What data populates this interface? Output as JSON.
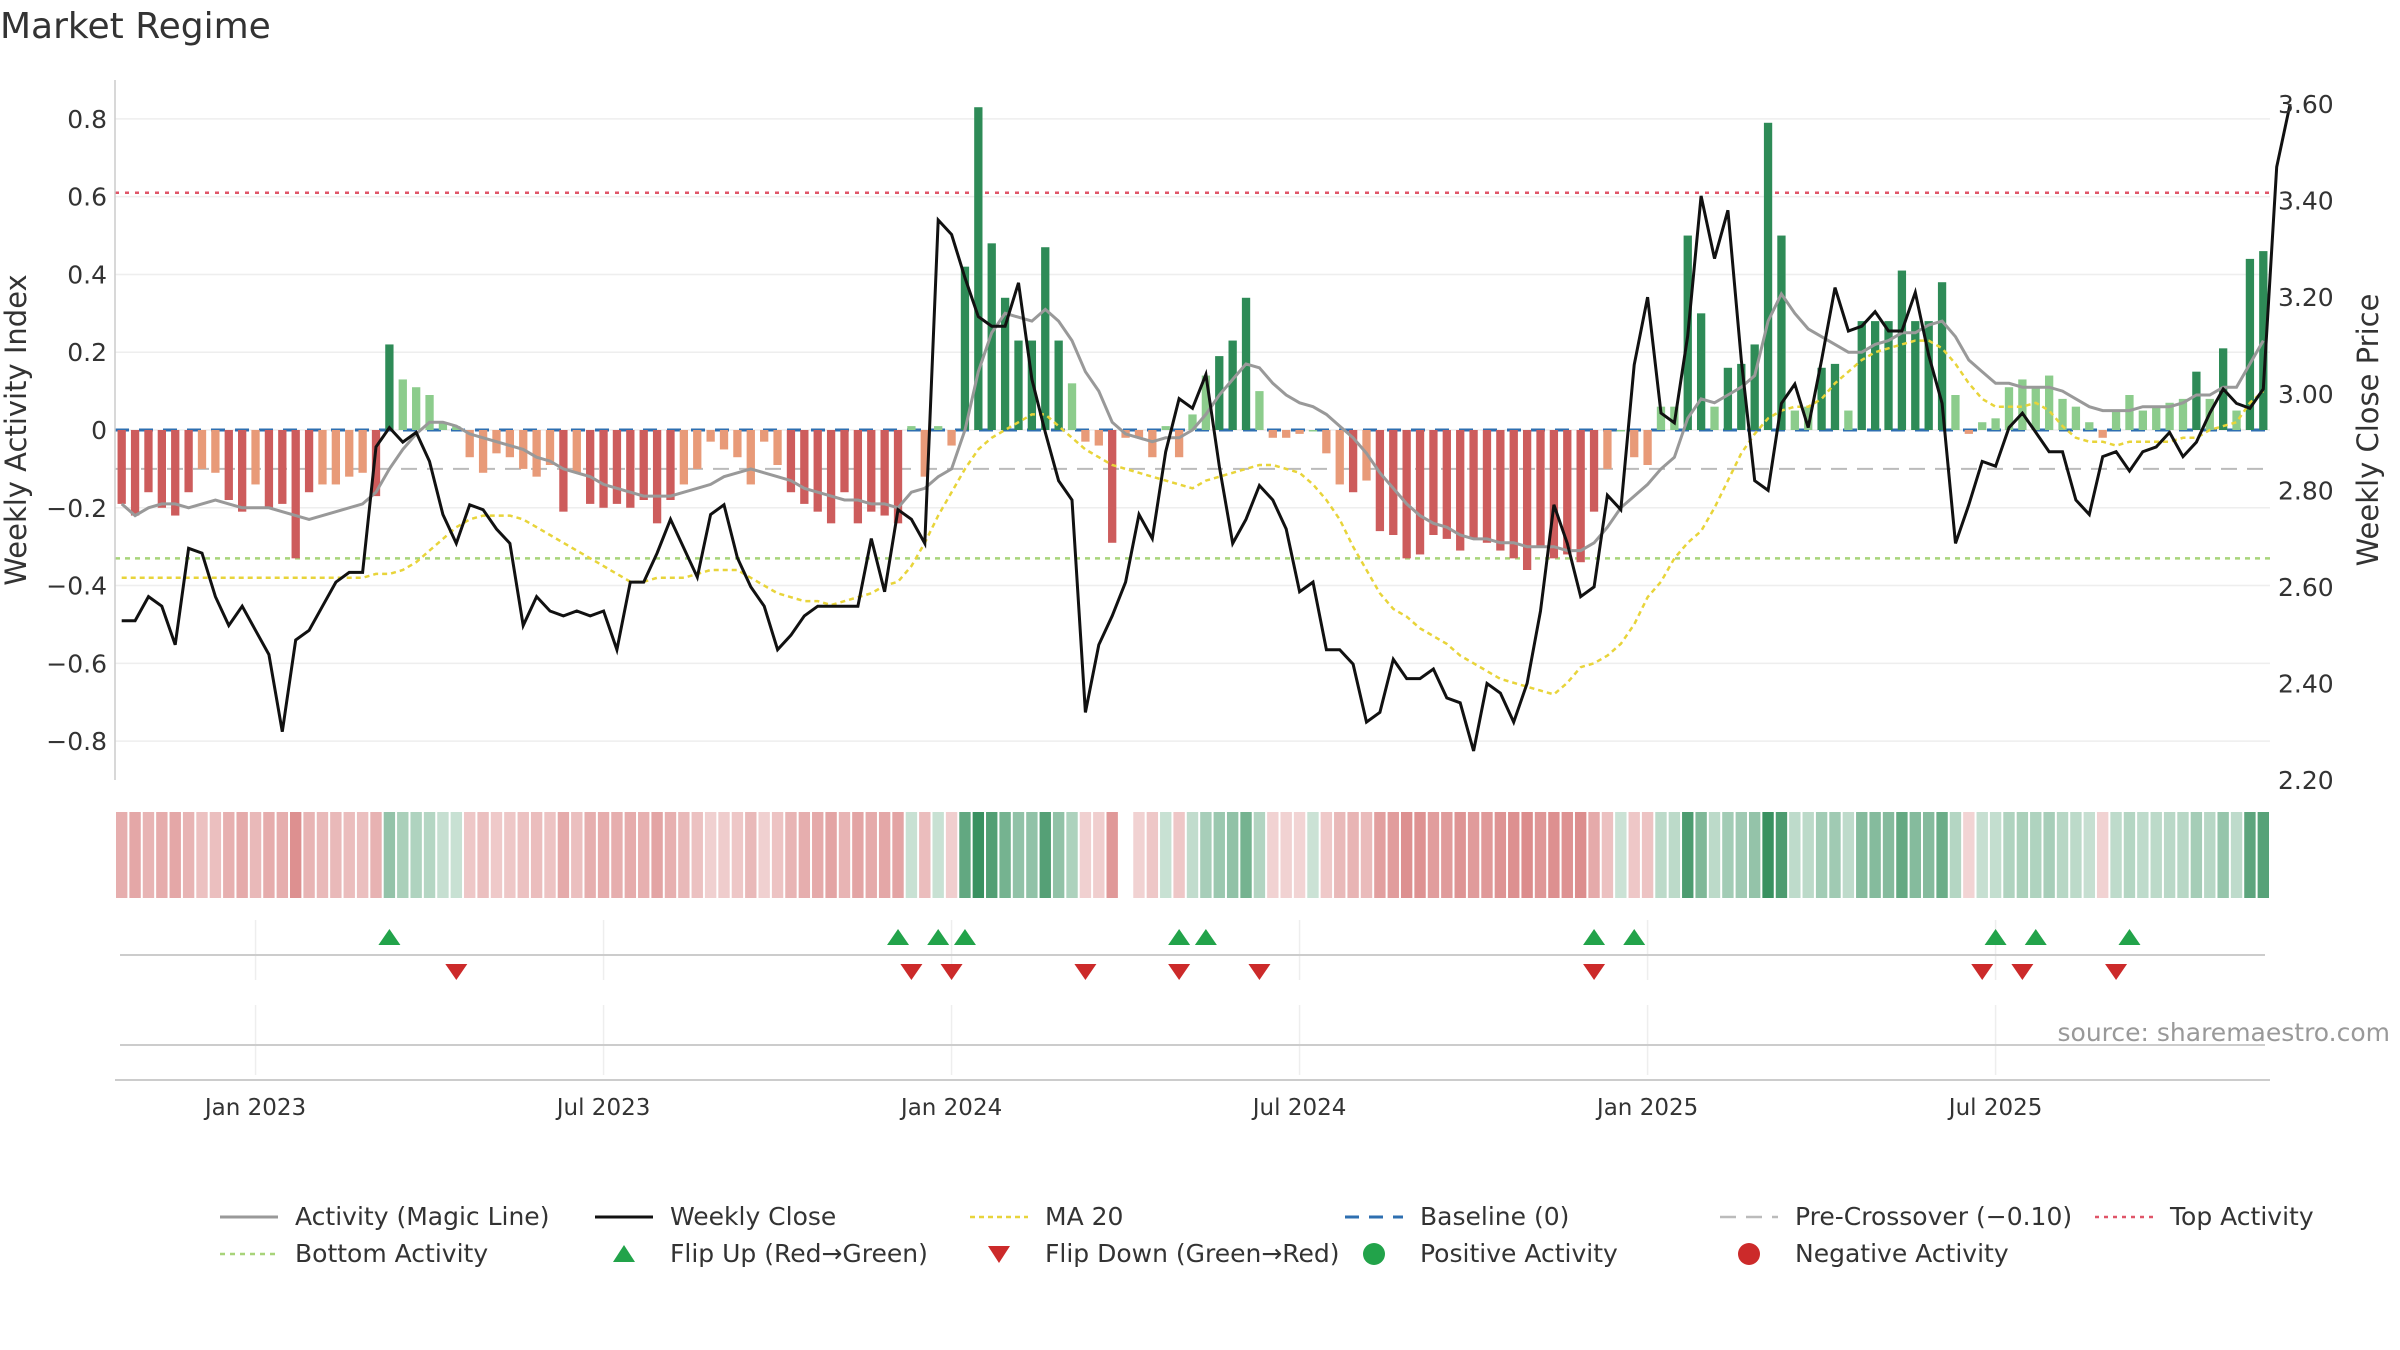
{
  "title": "Market Regime",
  "source_label": "source: sharemaestro.com",
  "colors": {
    "activity_line": "#999999",
    "close_line": "#111111",
    "ma20": "#e8d43a",
    "baseline": "#2e6fb0",
    "pre_crossover": "#bbbbbb",
    "top_activity": "#e05568",
    "bottom_activity": "#a8d47a",
    "flip_up": "#22a34a",
    "flip_down": "#cc2a2a",
    "bar_green_strong": "#2e8b57",
    "bar_green_light": "#8ccc8c",
    "bar_red_strong": "#cd5c5c",
    "bar_red_light": "#e89a78",
    "grid": "#eeeeee",
    "axis": "#cccccc"
  },
  "chart_data": {
    "type": "bar",
    "title": "Market Regime",
    "xlabel": "",
    "ylabel": "Weekly Activity Index",
    "y2label": "Weekly Close Price",
    "x_tick_labels": [
      "Jan 2023",
      "Jul 2023",
      "Jan 2024",
      "Jul 2024",
      "Jan 2025",
      "Jul 2025"
    ],
    "x_tick_weeks": [
      10,
      36,
      62,
      88,
      114,
      140
    ],
    "ylim": [
      -0.9,
      0.9
    ],
    "yticks": [
      -0.8,
      -0.6,
      -0.4,
      -0.2,
      0,
      0.2,
      0.4,
      0.6,
      0.8
    ],
    "ytick_labels": [
      "−0.8",
      "−0.6",
      "−0.4",
      "−0.2",
      "0",
      "0.2",
      "0.4",
      "0.6",
      "0.8"
    ],
    "y2lim": [
      2.2,
      3.65
    ],
    "y2ticks": [
      2.2,
      2.4,
      2.6,
      2.8,
      3.0,
      3.2,
      3.4,
      3.6
    ],
    "y2tick_labels": [
      "2.20",
      "2.40",
      "2.60",
      "2.80",
      "3.00",
      "3.20",
      "3.40",
      "3.60"
    ],
    "top_activity": 0.61,
    "bottom_activity": -0.33,
    "pre_crossover": -0.1,
    "baseline": 0,
    "activity": [
      -0.19,
      -0.22,
      -0.16,
      -0.2,
      -0.22,
      -0.16,
      -0.1,
      -0.11,
      -0.18,
      -0.21,
      -0.14,
      -0.2,
      -0.19,
      -0.33,
      -0.16,
      -0.14,
      -0.14,
      -0.12,
      -0.11,
      -0.17,
      0.22,
      0.13,
      0.11,
      0.09,
      0.02,
      0.01,
      -0.07,
      -0.11,
      -0.06,
      -0.07,
      -0.1,
      -0.12,
      -0.09,
      -0.21,
      -0.11,
      -0.19,
      -0.2,
      -0.19,
      -0.2,
      -0.18,
      -0.24,
      -0.18,
      -0.14,
      -0.1,
      -0.03,
      -0.05,
      -0.07,
      -0.14,
      -0.03,
      -0.09,
      -0.16,
      -0.19,
      -0.21,
      -0.24,
      -0.16,
      -0.24,
      -0.21,
      -0.22,
      -0.24,
      0.01,
      -0.12,
      0.01,
      -0.04,
      0.42,
      0.83,
      0.48,
      0.34,
      0.23,
      0.23,
      0.47,
      0.23,
      0.12,
      -0.03,
      -0.04,
      -0.29,
      -0.02,
      -0.02,
      -0.07,
      0.01,
      -0.07,
      0.04,
      0.14,
      0.19,
      0.23,
      0.34,
      0.1,
      -0.02,
      -0.02,
      -0.01,
      0,
      -0.06,
      -0.14,
      -0.16,
      -0.13,
      -0.26,
      -0.27,
      -0.33,
      -0.32,
      -0.27,
      -0.28,
      -0.31,
      -0.28,
      -0.29,
      -0.31,
      -0.33,
      -0.36,
      -0.3,
      -0.33,
      -0.32,
      -0.34,
      -0.21,
      -0.1,
      0,
      -0.07,
      -0.09,
      0.06,
      0.06,
      0.5,
      0.3,
      0.06,
      0.16,
      0.17,
      0.22,
      0.79,
      0.5,
      0.05,
      0.06,
      0.16,
      0.17,
      0.05,
      0.28,
      0.28,
      0.28,
      0.41,
      0.28,
      0.28,
      0.38,
      0.09,
      -0.01,
      0.02,
      0.03,
      0.11,
      0.13,
      0.11,
      0.14,
      0.08,
      0.06,
      0.02,
      -0.02,
      0.05,
      0.09,
      0.05,
      0.06,
      0.07,
      0.08,
      0.15,
      0.08,
      0.21,
      0.05,
      0.44,
      0.46
    ],
    "activity_line": [
      -0.19,
      -0.22,
      -0.2,
      -0.19,
      -0.19,
      -0.2,
      -0.19,
      -0.18,
      -0.19,
      -0.2,
      -0.2,
      -0.2,
      -0.21,
      -0.22,
      -0.23,
      -0.22,
      -0.21,
      -0.2,
      -0.19,
      -0.16,
      -0.1,
      -0.05,
      -0.01,
      0.02,
      0.02,
      0.01,
      -0.01,
      -0.02,
      -0.03,
      -0.04,
      -0.05,
      -0.07,
      -0.08,
      -0.1,
      -0.11,
      -0.12,
      -0.14,
      -0.15,
      -0.16,
      -0.17,
      -0.17,
      -0.17,
      -0.16,
      -0.15,
      -0.14,
      -0.12,
      -0.11,
      -0.1,
      -0.11,
      -0.12,
      -0.13,
      -0.15,
      -0.16,
      -0.17,
      -0.18,
      -0.18,
      -0.19,
      -0.19,
      -0.2,
      -0.16,
      -0.15,
      -0.12,
      -0.1,
      0.0,
      0.15,
      0.25,
      0.3,
      0.29,
      0.28,
      0.31,
      0.28,
      0.23,
      0.15,
      0.1,
      0.02,
      -0.01,
      -0.02,
      -0.03,
      -0.02,
      -0.02,
      0.0,
      0.04,
      0.09,
      0.13,
      0.17,
      0.16,
      0.12,
      0.09,
      0.07,
      0.06,
      0.04,
      0.01,
      -0.02,
      -0.06,
      -0.11,
      -0.15,
      -0.19,
      -0.22,
      -0.24,
      -0.25,
      -0.27,
      -0.28,
      -0.28,
      -0.29,
      -0.29,
      -0.3,
      -0.3,
      -0.3,
      -0.31,
      -0.31,
      -0.29,
      -0.25,
      -0.2,
      -0.17,
      -0.14,
      -0.1,
      -0.07,
      0.03,
      0.08,
      0.07,
      0.09,
      0.11,
      0.14,
      0.28,
      0.35,
      0.3,
      0.26,
      0.24,
      0.22,
      0.2,
      0.2,
      0.22,
      0.23,
      0.25,
      0.25,
      0.27,
      0.28,
      0.24,
      0.18,
      0.15,
      0.12,
      0.12,
      0.11,
      0.11,
      0.11,
      0.1,
      0.08,
      0.06,
      0.05,
      0.05,
      0.05,
      0.06,
      0.06,
      0.06,
      0.07,
      0.09,
      0.09,
      0.11,
      0.11,
      0.17,
      0.23
    ],
    "weekly_close": [
      2.53,
      2.53,
      2.58,
      2.56,
      2.48,
      2.68,
      2.67,
      2.58,
      2.52,
      2.56,
      2.51,
      2.46,
      2.3,
      2.49,
      2.51,
      2.56,
      2.61,
      2.63,
      2.63,
      2.89,
      2.93,
      2.9,
      2.92,
      2.86,
      2.75,
      2.69,
      2.77,
      2.76,
      2.72,
      2.69,
      2.52,
      2.58,
      2.55,
      2.54,
      2.55,
      2.54,
      2.55,
      2.47,
      2.61,
      2.61,
      2.67,
      2.74,
      2.68,
      2.62,
      2.75,
      2.77,
      2.66,
      2.6,
      2.56,
      2.47,
      2.5,
      2.54,
      2.56,
      2.56,
      2.56,
      2.56,
      2.7,
      2.59,
      2.76,
      2.74,
      2.69,
      3.36,
      3.33,
      3.24,
      3.16,
      3.14,
      3.14,
      3.23,
      3.03,
      2.92,
      2.82,
      2.78,
      2.34,
      2.48,
      2.54,
      2.61,
      2.75,
      2.7,
      2.88,
      2.99,
      2.97,
      3.04,
      2.85,
      2.69,
      2.74,
      2.81,
      2.78,
      2.72,
      2.59,
      2.61,
      2.47,
      2.47,
      2.44,
      2.32,
      2.34,
      2.45,
      2.41,
      2.41,
      2.43,
      2.37,
      2.36,
      2.26,
      2.4,
      2.38,
      2.32,
      2.4,
      2.55,
      2.77,
      2.69,
      2.58,
      2.6,
      2.79,
      2.76,
      3.06,
      3.2,
      2.96,
      2.94,
      3.12,
      3.41,
      3.28,
      3.38,
      3.07,
      2.82,
      2.8,
      2.98,
      3.02,
      2.93,
      3.07,
      3.22,
      3.13,
      3.14,
      3.17,
      3.13,
      3.13,
      3.21,
      3.08,
      2.98,
      2.69,
      2.77,
      2.86,
      2.85,
      2.93,
      2.96,
      2.92,
      2.88,
      2.88,
      2.78,
      2.75,
      2.87,
      2.88,
      2.84,
      2.88,
      2.89,
      2.92,
      2.87,
      2.9,
      2.96,
      3.01,
      2.98,
      2.97,
      3.01,
      3.47,
      3.6
    ],
    "ma20": [
      -0.38,
      -0.38,
      -0.38,
      -0.38,
      -0.38,
      -0.38,
      -0.38,
      -0.38,
      -0.38,
      -0.38,
      -0.38,
      -0.38,
      -0.38,
      -0.38,
      -0.38,
      -0.38,
      -0.38,
      -0.38,
      -0.38,
      -0.37,
      -0.37,
      -0.36,
      -0.34,
      -0.31,
      -0.28,
      -0.25,
      -0.23,
      -0.22,
      -0.22,
      -0.22,
      -0.23,
      -0.25,
      -0.27,
      -0.29,
      -0.31,
      -0.33,
      -0.35,
      -0.37,
      -0.39,
      -0.39,
      -0.38,
      -0.38,
      -0.38,
      -0.37,
      -0.36,
      -0.36,
      -0.36,
      -0.38,
      -0.4,
      -0.42,
      -0.43,
      -0.44,
      -0.44,
      -0.45,
      -0.44,
      -0.43,
      -0.42,
      -0.4,
      -0.39,
      -0.35,
      -0.29,
      -0.22,
      -0.16,
      -0.1,
      -0.05,
      -0.02,
      0.0,
      0.02,
      0.04,
      0.04,
      0.01,
      -0.02,
      -0.05,
      -0.07,
      -0.09,
      -0.1,
      -0.11,
      -0.12,
      -0.13,
      -0.14,
      -0.15,
      -0.13,
      -0.12,
      -0.11,
      -0.1,
      -0.09,
      -0.09,
      -0.1,
      -0.11,
      -0.14,
      -0.18,
      -0.23,
      -0.3,
      -0.36,
      -0.42,
      -0.46,
      -0.48,
      -0.51,
      -0.53,
      -0.55,
      -0.58,
      -0.6,
      -0.62,
      -0.64,
      -0.65,
      -0.66,
      -0.67,
      -0.68,
      -0.65,
      -0.61,
      -0.6,
      -0.58,
      -0.55,
      -0.5,
      -0.43,
      -0.39,
      -0.33,
      -0.29,
      -0.26,
      -0.2,
      -0.13,
      -0.06,
      -0.01,
      0.03,
      0.05,
      0.06,
      0.06,
      0.08,
      0.12,
      0.15,
      0.18,
      0.2,
      0.21,
      0.22,
      0.23,
      0.23,
      0.21,
      0.17,
      0.12,
      0.08,
      0.06,
      0.06,
      0.06,
      0.07,
      0.05,
      0.01,
      -0.02,
      -0.03,
      -0.03,
      -0.04,
      -0.03,
      -0.03,
      -0.03,
      -0.03,
      -0.02,
      -0.02,
      0.0,
      0.01,
      0.02,
      0.07,
      0.1
    ],
    "flip_up_weeks": [
      20,
      58,
      61,
      63,
      79,
      81,
      110,
      113,
      140,
      143,
      150
    ],
    "flip_down_weeks": [
      25,
      59,
      62,
      72,
      79,
      85,
      110,
      139,
      142,
      149
    ],
    "legend": [
      "Activity (Magic Line)",
      "Weekly Close",
      "MA 20",
      "Baseline (0)",
      "Pre-Crossover (−0.10)",
      "Top Activity",
      "Bottom Activity",
      "Flip Up (Red→Green)",
      "Flip Down (Green→Red)",
      "Positive Activity",
      "Negative Activity"
    ],
    "legend_position": "bottom"
  }
}
